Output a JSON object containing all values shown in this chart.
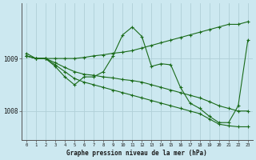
{
  "background_color": "#cce8f0",
  "grid_color": "#b0d0d8",
  "line_color": "#1a6b1a",
  "xlim": [
    -0.5,
    23.5
  ],
  "ylim": [
    1007.45,
    1010.05
  ],
  "yticks": [
    1008,
    1009
  ],
  "xticks": [
    0,
    1,
    2,
    3,
    4,
    5,
    6,
    7,
    8,
    9,
    10,
    11,
    12,
    13,
    14,
    15,
    16,
    17,
    18,
    19,
    20,
    21,
    22,
    23
  ],
  "xlabel": "Graphe pression niveau de la mer (hPa)",
  "series": {
    "upper_envelope": {
      "x": [
        0,
        1,
        2,
        3,
        4,
        5,
        6,
        7,
        8,
        9,
        10,
        11,
        12,
        13,
        14,
        15,
        16,
        17,
        18,
        19,
        20,
        21,
        22,
        23
      ],
      "y": [
        1009.05,
        1009.0,
        1009.0,
        1009.0,
        1009.0,
        1009.0,
        1009.02,
        1009.05,
        1009.07,
        1009.1,
        1009.12,
        1009.15,
        1009.2,
        1009.25,
        1009.3,
        1009.35,
        1009.4,
        1009.45,
        1009.5,
        1009.55,
        1009.6,
        1009.65,
        1009.65,
        1009.7
      ]
    },
    "lower_envelope": {
      "x": [
        0,
        1,
        2,
        3,
        4,
        5,
        6,
        7,
        8,
        9,
        10,
        11,
        12,
        13,
        14,
        15,
        16,
        17,
        18,
        19,
        20,
        21,
        22,
        23
      ],
      "y": [
        1009.05,
        1009.0,
        1009.0,
        1008.88,
        1008.75,
        1008.62,
        1008.55,
        1008.5,
        1008.45,
        1008.4,
        1008.35,
        1008.3,
        1008.25,
        1008.2,
        1008.15,
        1008.1,
        1008.05,
        1008.0,
        1007.95,
        1007.85,
        1007.75,
        1007.72,
        1007.7,
        1007.7
      ]
    },
    "mid_line": {
      "x": [
        0,
        1,
        2,
        3,
        4,
        5,
        6,
        7,
        8,
        9,
        10,
        11,
        12,
        13,
        14,
        15,
        16,
        17,
        18,
        19,
        20,
        21,
        22,
        23
      ],
      "y": [
        1009.05,
        1009.0,
        1009.0,
        1008.92,
        1008.83,
        1008.75,
        1008.7,
        1008.68,
        1008.65,
        1008.63,
        1008.6,
        1008.58,
        1008.55,
        1008.5,
        1008.45,
        1008.4,
        1008.35,
        1008.3,
        1008.25,
        1008.18,
        1008.1,
        1008.05,
        1008.0,
        1008.0
      ]
    },
    "main_zigzag": {
      "x": [
        0,
        1,
        2,
        3,
        4,
        5,
        6,
        7,
        8,
        9,
        10,
        11,
        12,
        13,
        14,
        15,
        16,
        17,
        18,
        19,
        20,
        21,
        22,
        23
      ],
      "y": [
        1009.1,
        1009.0,
        1009.0,
        1008.85,
        1008.65,
        1008.5,
        1008.65,
        1008.65,
        1008.75,
        1009.05,
        1009.45,
        1009.6,
        1009.42,
        1008.85,
        1008.9,
        1008.88,
        1008.45,
        1008.15,
        1008.05,
        1007.9,
        1007.78,
        1007.78,
        1008.1,
        1009.35
      ]
    }
  }
}
